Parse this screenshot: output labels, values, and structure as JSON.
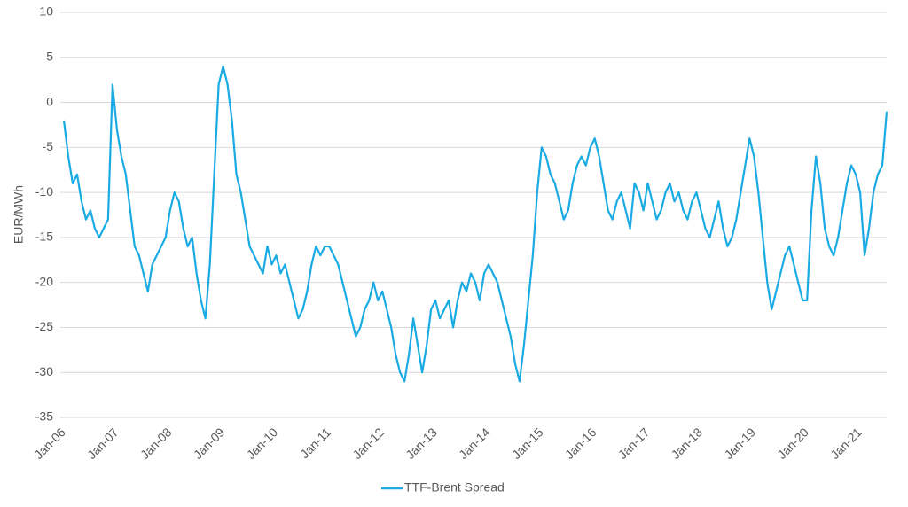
{
  "chart_data": {
    "type": "line",
    "y_label": "EUR/MWh",
    "categories": [
      "Jan-06",
      null,
      null,
      null,
      null,
      null,
      null,
      null,
      null,
      null,
      null,
      null,
      "Jan-07",
      null,
      null,
      null,
      null,
      null,
      null,
      null,
      null,
      null,
      null,
      null,
      "Jan-08",
      null,
      null,
      null,
      null,
      null,
      null,
      null,
      null,
      null,
      null,
      null,
      "Jan-09",
      null,
      null,
      null,
      null,
      null,
      null,
      null,
      null,
      null,
      null,
      null,
      "Jan-10",
      null,
      null,
      null,
      null,
      null,
      null,
      null,
      null,
      null,
      null,
      null,
      "Jan-11",
      null,
      null,
      null,
      null,
      null,
      null,
      null,
      null,
      null,
      null,
      null,
      "Jan-12",
      null,
      null,
      null,
      null,
      null,
      null,
      null,
      null,
      null,
      null,
      null,
      "Jan-13",
      null,
      null,
      null,
      null,
      null,
      null,
      null,
      null,
      null,
      null,
      null,
      "Jan-14",
      null,
      null,
      null,
      null,
      null,
      null,
      null,
      null,
      null,
      null,
      null,
      "Jan-15",
      null,
      null,
      null,
      null,
      null,
      null,
      null,
      null,
      null,
      null,
      null,
      "Jan-16",
      null,
      null,
      null,
      null,
      null,
      null,
      null,
      null,
      null,
      null,
      null,
      "Jan-17",
      null,
      null,
      null,
      null,
      null,
      null,
      null,
      null,
      null,
      null,
      null,
      "Jan-18",
      null,
      null,
      null,
      null,
      null,
      null,
      null,
      null,
      null,
      null,
      null,
      "Jan-19",
      null,
      null,
      null,
      null,
      null,
      null,
      null,
      null,
      null,
      null,
      null,
      "Jan-20",
      null,
      null,
      null,
      null,
      null,
      null,
      null,
      null,
      null,
      null,
      null,
      "Jan-21",
      null,
      null,
      null,
      null,
      null,
      null
    ],
    "series": [
      {
        "name": "TTF-Brent Spread",
        "color": "#1aabe4",
        "values": [
          -2,
          -6,
          -9,
          -8,
          -11,
          -13,
          -12,
          -14,
          -15,
          -14,
          -13,
          2,
          -3,
          -6,
          -8,
          -12,
          -16,
          -17,
          -19,
          -21,
          -18,
          -17,
          -16,
          -15,
          -12,
          -10,
          -11,
          -14,
          -16,
          -15,
          -19,
          -22,
          -24,
          -18,
          -8,
          2,
          4,
          2,
          -2,
          -8,
          -10,
          -13,
          -16,
          -17,
          -18,
          -19,
          -16,
          -18,
          -17,
          -19,
          -18,
          -20,
          -22,
          -24,
          -23,
          -21,
          -18,
          -16,
          -17,
          -16,
          -16,
          -17,
          -18,
          -20,
          -22,
          -24,
          -26,
          -25,
          -23,
          -22,
          -20,
          -22,
          -21,
          -23,
          -25,
          -28,
          -30,
          -31,
          -28,
          -24,
          -27,
          -30,
          -27,
          -23,
          -22,
          -24,
          -23,
          -22,
          -25,
          -22,
          -20,
          -21,
          -19,
          -20,
          -22,
          -19,
          -18,
          -19,
          -20,
          -22,
          -24,
          -26,
          -29,
          -31,
          -27,
          -22,
          -17,
          -10,
          -5,
          -6,
          -8,
          -9,
          -11,
          -13,
          -12,
          -9,
          -7,
          -6,
          -7,
          -5,
          -4,
          -6,
          -9,
          -12,
          -13,
          -11,
          -10,
          -12,
          -14,
          -9,
          -10,
          -12,
          -9,
          -11,
          -13,
          -12,
          -10,
          -9,
          -11,
          -10,
          -12,
          -13,
          -11,
          -10,
          -12,
          -14,
          -15,
          -13,
          -11,
          -14,
          -16,
          -15,
          -13,
          -10,
          -7,
          -4,
          -6,
          -10,
          -15,
          -20,
          -23,
          -21,
          -19,
          -17,
          -16,
          -18,
          -20,
          -22,
          -22,
          -12,
          -6,
          -9,
          -14,
          -16,
          -17,
          -15,
          -12,
          -9,
          -7,
          -8,
          -10,
          -17,
          -14,
          -10,
          -8,
          -7,
          -1
        ]
      }
    ],
    "ylim": [
      -35,
      10
    ],
    "yticks": [
      -35,
      -30,
      -25,
      -20,
      -15,
      -10,
      -5,
      0,
      5,
      10
    ],
    "grid": true,
    "legend": "bottom"
  }
}
